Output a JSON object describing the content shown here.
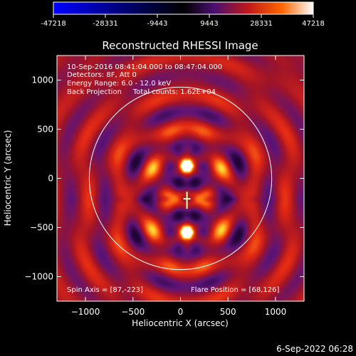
{
  "colorbar": {
    "ticks": [
      "-47218",
      "-28331",
      "-9443",
      "9443",
      "28331",
      "47218"
    ],
    "min": -47218,
    "max": 47218,
    "colors": [
      "#0000ff",
      "#000000",
      "#4b1070",
      "#c01818",
      "#ff6600",
      "#ffffff"
    ]
  },
  "chart_data": {
    "type": "heatmap",
    "title": "Reconstructed RHESSI Image",
    "xlabel": "Heliocentric X (arcsec)",
    "ylabel": "Heliocentric Y (arcsec)",
    "xlim": [
      -1300,
      1300
    ],
    "ylim": [
      -1250,
      1250
    ],
    "x_ticks": [
      -1000,
      -500,
      0,
      500,
      1000
    ],
    "y_ticks": [
      -1000,
      -500,
      0,
      500,
      1000
    ],
    "x_tick_labels": [
      "−1000",
      "−500",
      "0",
      "500",
      "1000"
    ],
    "y_tick_labels": [
      "−1000",
      "−500",
      "0",
      "500",
      "1000"
    ],
    "solar_limb_radius": 960,
    "sources": [
      {
        "x": 68,
        "y": 126
      },
      {
        "x": 68,
        "y": -550
      }
    ],
    "flare_position": [
      68,
      126
    ],
    "spin_axis": [
      87,
      -223
    ],
    "info_lines": [
      "10-Sep-2016 08:41:04.000 to 08:47:04.000",
      "Detectors: 8F, Att 0",
      "Energy Range: 6.0 - 12.0 keV",
      "Back Projection     Total counts: 1.62E+04"
    ],
    "spin_axis_label": "Spin Axis = [87,-223]",
    "flare_position_label": "Flare Position = [68,126]"
  },
  "footer": {
    "timestamp": "6-Sep-2022 06:28"
  }
}
